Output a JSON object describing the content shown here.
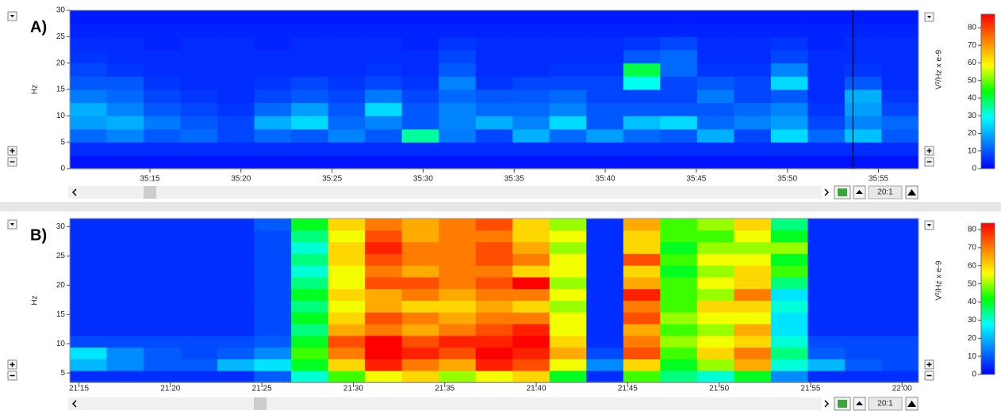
{
  "chart_data": [
    {
      "type": "heatmap",
      "panel_label": "A)",
      "y_label": "Hz",
      "colorbar_label": "V²/Hz x e-9",
      "zoom": "20:1",
      "xlim": [
        2110.6,
        2157.2
      ],
      "xticks": [
        {
          "value": 2115,
          "label": "35:15"
        },
        {
          "value": 2120,
          "label": "35:20"
        },
        {
          "value": 2125,
          "label": "35:25"
        },
        {
          "value": 2130,
          "label": "35:30"
        },
        {
          "value": 2135,
          "label": "35:35"
        },
        {
          "value": 2140,
          "label": "35:40"
        },
        {
          "value": 2145,
          "label": "35:45"
        },
        {
          "value": 2150,
          "label": "35:50"
        },
        {
          "value": 2155,
          "label": "35:55"
        }
      ],
      "ylim": [
        0,
        30
      ],
      "yticks": [
        0,
        5,
        10,
        15,
        20,
        25,
        30
      ],
      "cursor_x": 2153.6,
      "clim": [
        0,
        87.6
      ],
      "cticks": [
        0,
        10,
        20,
        30,
        40,
        50,
        60,
        70,
        80
      ],
      "colorscale": [
        "#0000ff",
        "#0080ff",
        "#00ffff",
        "#00ff00",
        "#ffff00",
        "#ff8000",
        "#ff0000"
      ],
      "z": [
        [
          2,
          2,
          2,
          2,
          2,
          2,
          2,
          2,
          2,
          2,
          2,
          2,
          2,
          2,
          2,
          2,
          2,
          2,
          2,
          2,
          2,
          2,
          2
        ],
        [
          5,
          5,
          5,
          5,
          5,
          5,
          5,
          5,
          5,
          5,
          5,
          5,
          5,
          5,
          5,
          5,
          5,
          5,
          5,
          5,
          5,
          5,
          5
        ],
        [
          12,
          15,
          10,
          12,
          8,
          12,
          10,
          15,
          10,
          35,
          14,
          8,
          20,
          12,
          18,
          12,
          10,
          20,
          8,
          25,
          12,
          22,
          10
        ],
        [
          18,
          20,
          14,
          10,
          8,
          20,
          25,
          12,
          15,
          10,
          15,
          20,
          15,
          25,
          10,
          22,
          25,
          12,
          15,
          18,
          8,
          15,
          12
        ],
        [
          20,
          15,
          10,
          8,
          6,
          12,
          18,
          10,
          25,
          10,
          15,
          12,
          12,
          15,
          10,
          10,
          10,
          10,
          12,
          15,
          6,
          18,
          8
        ],
        [
          14,
          12,
          8,
          6,
          5,
          8,
          10,
          8,
          14,
          8,
          12,
          10,
          10,
          12,
          8,
          8,
          8,
          14,
          8,
          10,
          5,
          20,
          6
        ],
        [
          10,
          10,
          6,
          5,
          5,
          6,
          8,
          6,
          8,
          6,
          15,
          6,
          8,
          8,
          8,
          30,
          8,
          10,
          8,
          25,
          5,
          10,
          5
        ],
        [
          8,
          6,
          5,
          5,
          5,
          5,
          5,
          5,
          6,
          5,
          10,
          5,
          5,
          6,
          6,
          40,
          12,
          6,
          6,
          15,
          5,
          6,
          5
        ],
        [
          6,
          5,
          5,
          5,
          5,
          5,
          5,
          5,
          5,
          5,
          8,
          5,
          5,
          5,
          5,
          10,
          12,
          5,
          5,
          8,
          5,
          5,
          5
        ],
        [
          5,
          5,
          4,
          5,
          5,
          4,
          5,
          5,
          5,
          4,
          6,
          5,
          5,
          5,
          5,
          6,
          8,
          5,
          5,
          6,
          4,
          5,
          5
        ],
        [
          4,
          4,
          4,
          4,
          4,
          4,
          4,
          4,
          4,
          4,
          4,
          4,
          4,
          4,
          4,
          4,
          4,
          4,
          4,
          4,
          4,
          4,
          4
        ],
        [
          3,
          3,
          3,
          3,
          3,
          3,
          3,
          3,
          3,
          3,
          3,
          3,
          3,
          3,
          3,
          3,
          3,
          3,
          3,
          3,
          3,
          3,
          3
        ]
      ]
    },
    {
      "type": "heatmap",
      "panel_label": "B)",
      "y_label": "Hz",
      "colorbar_label": "V²/Hz x e-9",
      "zoom": "20:1",
      "xlim": [
        1274.5,
        1320.9
      ],
      "xticks": [
        {
          "value": 1275,
          "label": "21:15"
        },
        {
          "value": 1280,
          "label": "21:20"
        },
        {
          "value": 1285,
          "label": "21:25"
        },
        {
          "value": 1290,
          "label": "21:30"
        },
        {
          "value": 1295,
          "label": "21:35"
        },
        {
          "value": 1300,
          "label": "21:40"
        },
        {
          "value": 1305,
          "label": "21:45"
        },
        {
          "value": 1310,
          "label": "21:50"
        },
        {
          "value": 1315,
          "label": "21:55"
        },
        {
          "value": 1320,
          "label": "22:00"
        }
      ],
      "ylim": [
        3.4,
        31.4
      ],
      "yticks": [
        5,
        10,
        15,
        20,
        25,
        30
      ],
      "clim": [
        0,
        83.5
      ],
      "cticks": [
        0,
        10,
        20,
        30,
        40,
        50,
        60,
        70,
        80
      ],
      "colorscale": [
        "#0000ff",
        "#0080ff",
        "#00ffff",
        "#00ff00",
        "#ffff00",
        "#ff8000",
        "#ff0000"
      ],
      "z": [
        [
          5,
          5,
          5,
          5,
          5,
          10,
          30,
          45,
          55,
          60,
          50,
          55,
          60,
          40,
          5,
          45,
          35,
          30,
          40,
          15,
          5,
          5,
          5
        ],
        [
          20,
          15,
          10,
          10,
          20,
          25,
          40,
          60,
          80,
          70,
          65,
          80,
          75,
          55,
          15,
          60,
          40,
          50,
          65,
          30,
          20,
          10,
          8
        ],
        [
          25,
          15,
          10,
          8,
          10,
          15,
          45,
          70,
          85,
          80,
          75,
          85,
          80,
          65,
          8,
          75,
          45,
          60,
          70,
          35,
          10,
          8,
          8
        ],
        [
          8,
          8,
          8,
          8,
          8,
          10,
          40,
          75,
          85,
          75,
          80,
          80,
          85,
          60,
          5,
          70,
          50,
          55,
          60,
          30,
          8,
          8,
          8
        ],
        [
          5,
          5,
          5,
          5,
          5,
          8,
          35,
          65,
          70,
          65,
          70,
          75,
          80,
          55,
          5,
          65,
          45,
          50,
          65,
          25,
          5,
          5,
          5
        ],
        [
          5,
          5,
          5,
          5,
          5,
          8,
          40,
          60,
          75,
          70,
          65,
          70,
          70,
          55,
          5,
          75,
          50,
          55,
          55,
          25,
          5,
          5,
          5
        ],
        [
          5,
          5,
          5,
          5,
          5,
          8,
          35,
          55,
          65,
          60,
          60,
          65,
          60,
          50,
          5,
          70,
          45,
          60,
          60,
          30,
          5,
          5,
          5
        ],
        [
          5,
          5,
          5,
          5,
          5,
          8,
          40,
          60,
          65,
          70,
          65,
          70,
          70,
          55,
          5,
          80,
          45,
          50,
          70,
          25,
          5,
          5,
          5
        ],
        [
          5,
          5,
          5,
          5,
          5,
          8,
          35,
          55,
          75,
          75,
          70,
          75,
          85,
          50,
          5,
          65,
          45,
          55,
          60,
          35,
          5,
          5,
          5
        ],
        [
          5,
          5,
          5,
          5,
          5,
          8,
          30,
          55,
          70,
          65,
          70,
          70,
          60,
          55,
          5,
          60,
          40,
          50,
          60,
          45,
          5,
          5,
          5
        ],
        [
          5,
          5,
          5,
          5,
          5,
          8,
          35,
          60,
          75,
          70,
          70,
          75,
          70,
          55,
          5,
          75,
          45,
          55,
          55,
          40,
          5,
          5,
          5
        ],
        [
          5,
          5,
          5,
          5,
          5,
          8,
          30,
          60,
          80,
          70,
          70,
          75,
          65,
          50,
          5,
          60,
          40,
          50,
          50,
          50,
          5,
          5,
          5
        ],
        [
          5,
          5,
          5,
          5,
          5,
          8,
          35,
          55,
          75,
          65,
          70,
          70,
          60,
          55,
          5,
          60,
          45,
          45,
          55,
          40,
          5,
          5,
          5
        ],
        [
          5,
          5,
          5,
          5,
          5,
          10,
          40,
          60,
          70,
          65,
          70,
          75,
          60,
          50,
          5,
          65,
          45,
          50,
          60,
          35,
          5,
          5,
          5
        ]
      ]
    }
  ]
}
